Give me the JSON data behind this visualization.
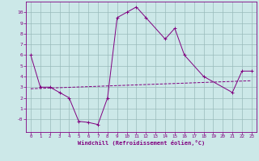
{
  "main_x": [
    0,
    1,
    2,
    3,
    4,
    5,
    6,
    7,
    8,
    9,
    10,
    11,
    12,
    14,
    15,
    16,
    18,
    21,
    22,
    23
  ],
  "main_y": [
    6,
    3,
    3,
    2.5,
    2,
    -0.2,
    -0.3,
    -0.5,
    2,
    9.5,
    10,
    10.5,
    9.5,
    7.5,
    8.5,
    6,
    4,
    2.5,
    4.5,
    4.5
  ],
  "trend_x": [
    0,
    23
  ],
  "trend_y": [
    2.85,
    3.6
  ],
  "markers_x": [
    0,
    1,
    2,
    3,
    4,
    5,
    6,
    7,
    8,
    9,
    10,
    11,
    12,
    14,
    15,
    16,
    18,
    21,
    22,
    23
  ],
  "markers_y": [
    6,
    3,
    3,
    2.5,
    2,
    -0.2,
    -0.3,
    -0.5,
    2,
    9.5,
    10,
    10.5,
    9.5,
    7.5,
    8.5,
    6,
    4,
    2.5,
    4.5,
    4.5
  ],
  "bg_color": "#cce8e8",
  "line_color": "#800080",
  "grid_color": "#99bbbb",
  "xlabel": "Windchill (Refroidissement éolien,°C)",
  "xlim": [
    -0.5,
    23.5
  ],
  "ylim": [
    -1.2,
    11
  ],
  "yticks": [
    0,
    1,
    2,
    3,
    4,
    5,
    6,
    7,
    8,
    9,
    10
  ],
  "xticks": [
    0,
    1,
    2,
    3,
    4,
    5,
    6,
    7,
    8,
    9,
    10,
    11,
    12,
    13,
    14,
    15,
    16,
    17,
    18,
    19,
    20,
    21,
    22,
    23
  ]
}
